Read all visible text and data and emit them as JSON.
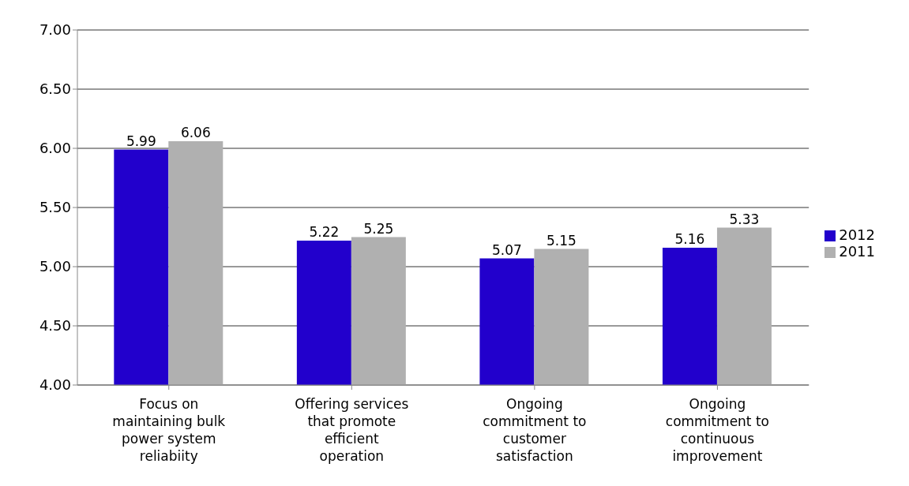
{
  "chart_data": {
    "type": "bar",
    "categories": [
      "Focus on maintaining bulk power system reliabiity",
      "Offering services that promote efficient operation",
      "Ongoing commitment to customer satisfaction",
      "Ongoing commitment to continuous improvement"
    ],
    "series": [
      {
        "name": "2012",
        "color": "#2200cc",
        "values": [
          5.99,
          5.22,
          5.07,
          5.16
        ]
      },
      {
        "name": "2011",
        "color": "#b0b0b0",
        "values": [
          6.06,
          5.25,
          5.15,
          5.33
        ]
      }
    ],
    "ylim": [
      4,
      7
    ],
    "yticks": [
      {
        "value": 4,
        "label": "4.00"
      },
      {
        "value": 4.5,
        "label": "4.50"
      },
      {
        "value": 5,
        "label": "5.00"
      },
      {
        "value": 5.5,
        "label": "5.50"
      },
      {
        "value": 6,
        "label": "6.00"
      },
      {
        "value": 6.5,
        "label": "6.50"
      },
      {
        "value": 7,
        "label": "7.00"
      }
    ],
    "grid": "y",
    "legend": "right",
    "data_labels": true
  }
}
